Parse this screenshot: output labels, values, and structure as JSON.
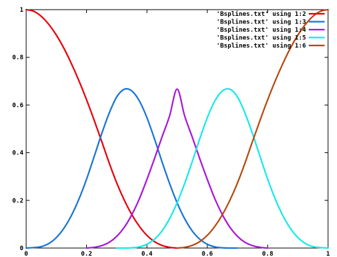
{
  "chart_data": {
    "type": "line",
    "title": "",
    "xlabel": "",
    "ylabel": "",
    "xlim": [
      0,
      1
    ],
    "ylim": [
      0,
      1
    ],
    "x_ticks": [
      "0",
      "0.2",
      "0.4",
      "0.6",
      "0.8",
      "1"
    ],
    "y_ticks": [
      "0",
      "0.2",
      "0.4",
      "0.6",
      "0.8",
      "1"
    ],
    "grid": false,
    "legend_position": "top-right",
    "series": [
      {
        "name": "'Bsplines.txt' using 1:2",
        "color": "#e8000b",
        "x": [
          0,
          0.025,
          0.05,
          0.075,
          0.1,
          0.125,
          0.15,
          0.175,
          0.2,
          0.225,
          0.25,
          0.275,
          0.3,
          0.325,
          0.35,
          0.375,
          0.4,
          0.425,
          0.45,
          0.475,
          0.5
        ],
        "y": [
          1,
          0.993,
          0.972,
          0.938,
          0.893,
          0.838,
          0.773,
          0.701,
          0.622,
          0.537,
          0.448,
          0.357,
          0.273,
          0.201,
          0.14,
          0.091,
          0.053,
          0.027,
          0.011,
          0.003,
          0
        ]
      },
      {
        "name": "'Bsplines.txt' using 1:3",
        "color": "#1874d8",
        "x": [
          0,
          0.025,
          0.05,
          0.075,
          0.1,
          0.125,
          0.15,
          0.175,
          0.2,
          0.225,
          0.25,
          0.275,
          0.3,
          0.325,
          0.35,
          0.375,
          0.4,
          0.425,
          0.45,
          0.475,
          0.5,
          0.525,
          0.55,
          0.575,
          0.6,
          0.625,
          0.65,
          0.675,
          0.7
        ],
        "y": [
          0,
          0.002,
          0.006,
          0.019,
          0.044,
          0.083,
          0.137,
          0.206,
          0.289,
          0.383,
          0.479,
          0.566,
          0.634,
          0.666,
          0.659,
          0.617,
          0.547,
          0.458,
          0.362,
          0.271,
          0.19,
          0.123,
          0.072,
          0.037,
          0.016,
          0.005,
          0.001,
          0,
          0
        ]
      },
      {
        "name": "'Bsplines.txt' using 1:4",
        "color": "#a818d8",
        "x": [
          0.2,
          0.225,
          0.25,
          0.275,
          0.3,
          0.325,
          0.35,
          0.375,
          0.4,
          0.425,
          0.45,
          0.475,
          0.5,
          0.525,
          0.55,
          0.575,
          0.6,
          0.625,
          0.65,
          0.675,
          0.7,
          0.725,
          0.75,
          0.775,
          0.8
        ],
        "y": [
          0,
          0.003,
          0.01,
          0.024,
          0.049,
          0.087,
          0.14,
          0.207,
          0.288,
          0.375,
          0.466,
          0.554,
          0.667,
          0.554,
          0.466,
          0.375,
          0.288,
          0.207,
          0.14,
          0.087,
          0.049,
          0.024,
          0.01,
          0.003,
          0
        ]
      },
      {
        "name": "'Bsplines.txt' using 1:5",
        "color": "#18e8e8",
        "x": [
          0.3,
          0.325,
          0.35,
          0.375,
          0.4,
          0.425,
          0.45,
          0.475,
          0.5,
          0.525,
          0.55,
          0.575,
          0.6,
          0.625,
          0.65,
          0.675,
          0.7,
          0.725,
          0.75,
          0.775,
          0.8,
          0.825,
          0.85,
          0.875,
          0.9,
          0.925,
          0.95,
          0.975,
          1
        ],
        "y": [
          0,
          0,
          0.001,
          0.005,
          0.016,
          0.037,
          0.072,
          0.123,
          0.19,
          0.271,
          0.362,
          0.458,
          0.547,
          0.617,
          0.659,
          0.666,
          0.634,
          0.566,
          0.479,
          0.383,
          0.289,
          0.206,
          0.137,
          0.083,
          0.044,
          0.019,
          0.006,
          0.002,
          0
        ]
      },
      {
        "name": "'Bsplines.txt' using 1:6",
        "color": "#b84810",
        "x": [
          0.5,
          0.525,
          0.55,
          0.575,
          0.6,
          0.625,
          0.65,
          0.675,
          0.7,
          0.725,
          0.75,
          0.775,
          0.8,
          0.825,
          0.85,
          0.875,
          0.9,
          0.925,
          0.95,
          0.975,
          1
        ],
        "y": [
          0,
          0.003,
          0.011,
          0.027,
          0.053,
          0.091,
          0.14,
          0.201,
          0.273,
          0.357,
          0.448,
          0.537,
          0.622,
          0.701,
          0.773,
          0.838,
          0.893,
          0.938,
          0.972,
          0.993,
          1
        ]
      }
    ]
  }
}
